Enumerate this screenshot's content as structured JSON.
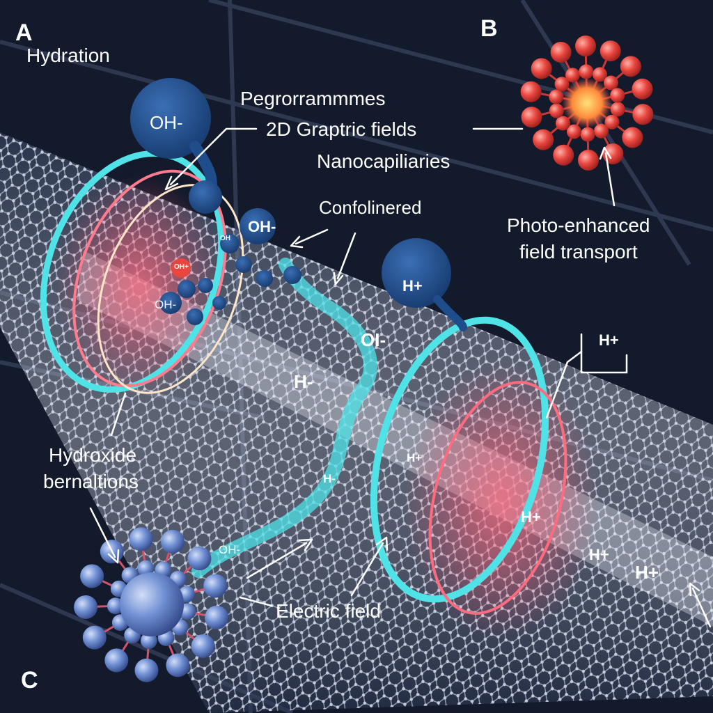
{
  "panels": {
    "a": "A",
    "b": "B",
    "c": "C"
  },
  "labels": {
    "hydration": "Hydration",
    "programmes": "Pegrorrammmes",
    "graptric": "2D Graptric fields",
    "nanocap": "Nanocapiliaries",
    "confolinered": "Confolinered",
    "photo_line1": "Photo-enhanced",
    "photo_line2": "field transport",
    "hydroxide_line1": "Hydroxide",
    "hydroxide_line2": "bernaltions",
    "electric": "Electric field"
  },
  "ions": {
    "oh_bubble": "OH-",
    "oh_mid": "OH-",
    "oh_small": "OH",
    "oh_red": "OH+",
    "oh_left": "OH-",
    "oi": "OI-",
    "h_glow": "H-",
    "h_bubble": "H+",
    "h_box": "H+",
    "h_mid": "H+",
    "h_minus": "H-",
    "oh_tail": "OH-",
    "h_right1": "H+",
    "h_right2": "H+",
    "h_right3": "H+"
  },
  "colors": {
    "background": "#121a2b",
    "cyan_ring": "#4fe3e8",
    "red_glow": "#ff4b6a",
    "tube_lattice": "#b9c2d6",
    "oh_bubble": "#1f4d8c",
    "red_molecule": "#e8463f",
    "blue_molecule": "#6f8fd3"
  }
}
